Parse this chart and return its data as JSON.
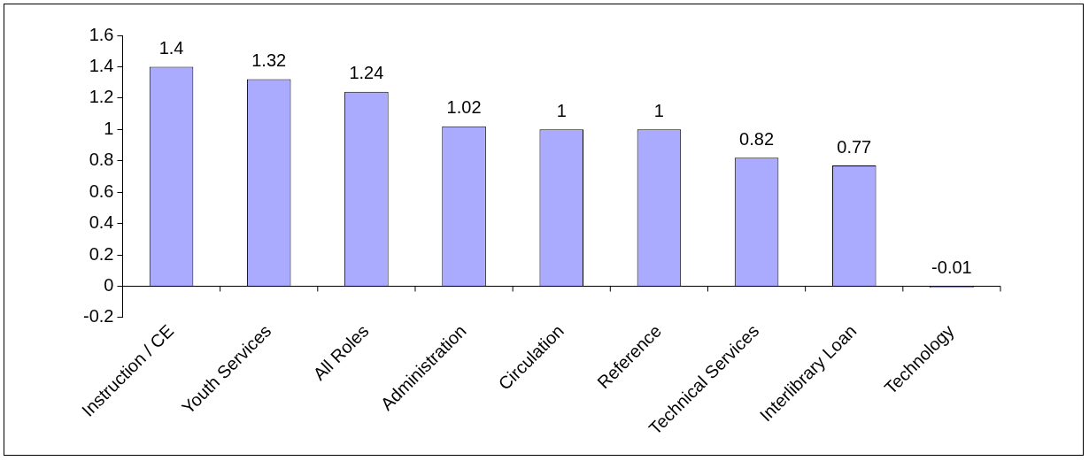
{
  "chart_data": {
    "type": "bar",
    "categories": [
      "Instruction / CE",
      "Youth Services",
      "All Roles",
      "Administration",
      "Circulation",
      "Reference",
      "Technical Services",
      "Interlibrary Loan",
      "Technology"
    ],
    "values": [
      1.4,
      1.32,
      1.24,
      1.02,
      1,
      1,
      0.82,
      0.77,
      -0.01
    ],
    "color": "#aaaaff",
    "ylim": [
      -0.2,
      1.6
    ],
    "yticks": [
      -0.2,
      0,
      0.2,
      0.4,
      0.6,
      0.8,
      1,
      1.2,
      1.4,
      1.6
    ],
    "data_labels": true,
    "legend": false,
    "grid": false
  }
}
